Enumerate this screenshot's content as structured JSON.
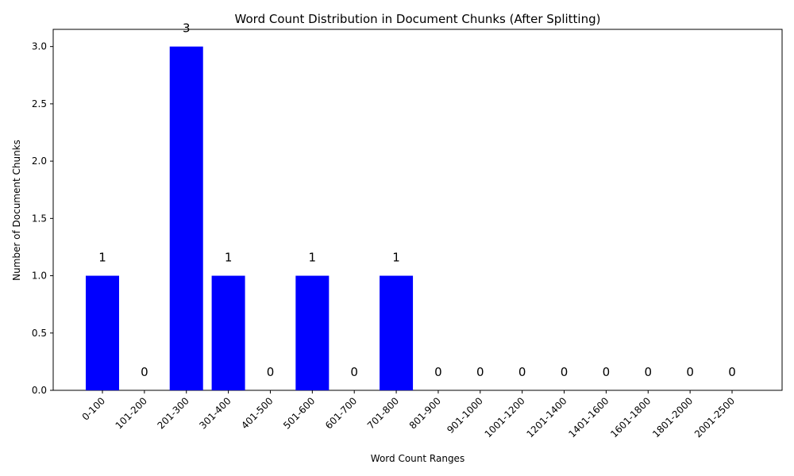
{
  "chart_data": {
    "type": "bar",
    "title": "Word Count Distribution in Document Chunks (After Splitting)",
    "xlabel": "Word Count Ranges",
    "ylabel": "Number of Document Chunks",
    "categories": [
      "0-100",
      "101-200",
      "201-300",
      "301-400",
      "401-500",
      "501-600",
      "601-700",
      "701-800",
      "801-900",
      "901-1000",
      "1001-1200",
      "1201-1400",
      "1401-1600",
      "1601-1800",
      "1801-2000",
      "2001-2500"
    ],
    "values": [
      1,
      0,
      3,
      1,
      0,
      1,
      0,
      1,
      0,
      0,
      0,
      0,
      0,
      0,
      0,
      0
    ],
    "data_labels": [
      "1",
      "0",
      "3",
      "1",
      "0",
      "1",
      "0",
      "1",
      "0",
      "0",
      "0",
      "0",
      "0",
      "0",
      "0",
      "0"
    ],
    "y_ticks": [
      "0.0",
      "0.5",
      "1.0",
      "1.5",
      "2.0",
      "2.5",
      "3.0"
    ],
    "ylim": [
      0,
      3.15
    ],
    "bar_color": "#0000ff",
    "grid": false,
    "legend": "none"
  }
}
